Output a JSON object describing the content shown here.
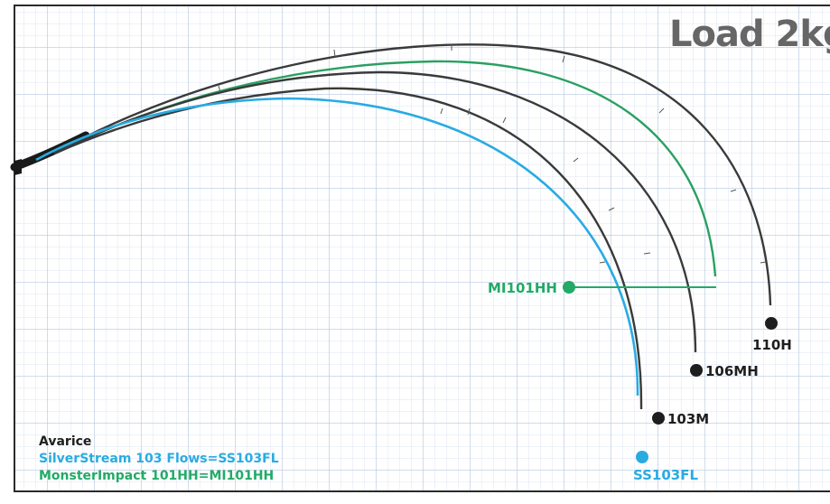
{
  "title": "Load 2kg",
  "colors": {
    "dark": "#3a3a3a",
    "blue": "#29abe2",
    "green": "#22aa66",
    "grid": "#c7d6ea",
    "title": "#666666"
  },
  "curves": [
    {
      "id": "110H",
      "label": "110H",
      "color": "dark"
    },
    {
      "id": "MI101HH",
      "label": "MI101HH",
      "color": "green"
    },
    {
      "id": "106MH",
      "label": "106MH",
      "color": "dark"
    },
    {
      "id": "103M",
      "label": "103M",
      "color": "dark"
    },
    {
      "id": "SS103FL",
      "label": "SS103FL",
      "color": "blue"
    }
  ],
  "legend": {
    "heading": "Avarice",
    "line1": "SilverStream 103 Flows=SS103FL",
    "line2": "MonsterImpact 101HH=MI101HH"
  }
}
